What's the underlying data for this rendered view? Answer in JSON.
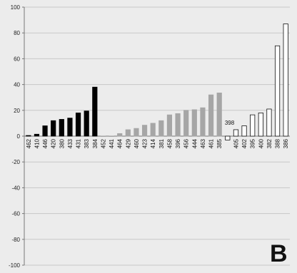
{
  "panel_letter": "B",
  "chart_data": {
    "type": "bar",
    "title": "",
    "xlabel": "",
    "ylabel": "",
    "ylim": [
      -100,
      100
    ],
    "yticks": [
      -100,
      -80,
      -60,
      -40,
      -20,
      0,
      20,
      40,
      60,
      80,
      100
    ],
    "grid": true,
    "categories": [
      "462",
      "410",
      "446",
      "420",
      "380",
      "433",
      "431",
      "383",
      "384",
      "452",
      "441",
      "464",
      "429",
      "460",
      "423",
      "414",
      "381",
      "458",
      "396",
      "456",
      "444",
      "463",
      "461",
      "385",
      "398",
      "405",
      "402",
      "395",
      "400",
      "382",
      "388",
      "386"
    ],
    "values": [
      0.5,
      1.5,
      8,
      12,
      13,
      14,
      18,
      19.5,
      38,
      0,
      0,
      2,
      5,
      6,
      8.5,
      10,
      12,
      16.5,
      17.5,
      20,
      20.5,
      22,
      32,
      33.5,
      -3,
      5,
      8,
      16.5,
      18,
      21,
      70,
      87
    ],
    "groups": [
      {
        "fill": "#000000",
        "stroke": "#000000",
        "count": 9
      },
      {
        "fill": "#a6a6a6",
        "stroke": "#a6a6a6",
        "count": 15
      },
      {
        "fill": "#ffffff",
        "stroke": "#111111",
        "count": 8
      }
    ],
    "inline_labels": [
      {
        "category_index": 24,
        "text": "398"
      }
    ]
  }
}
